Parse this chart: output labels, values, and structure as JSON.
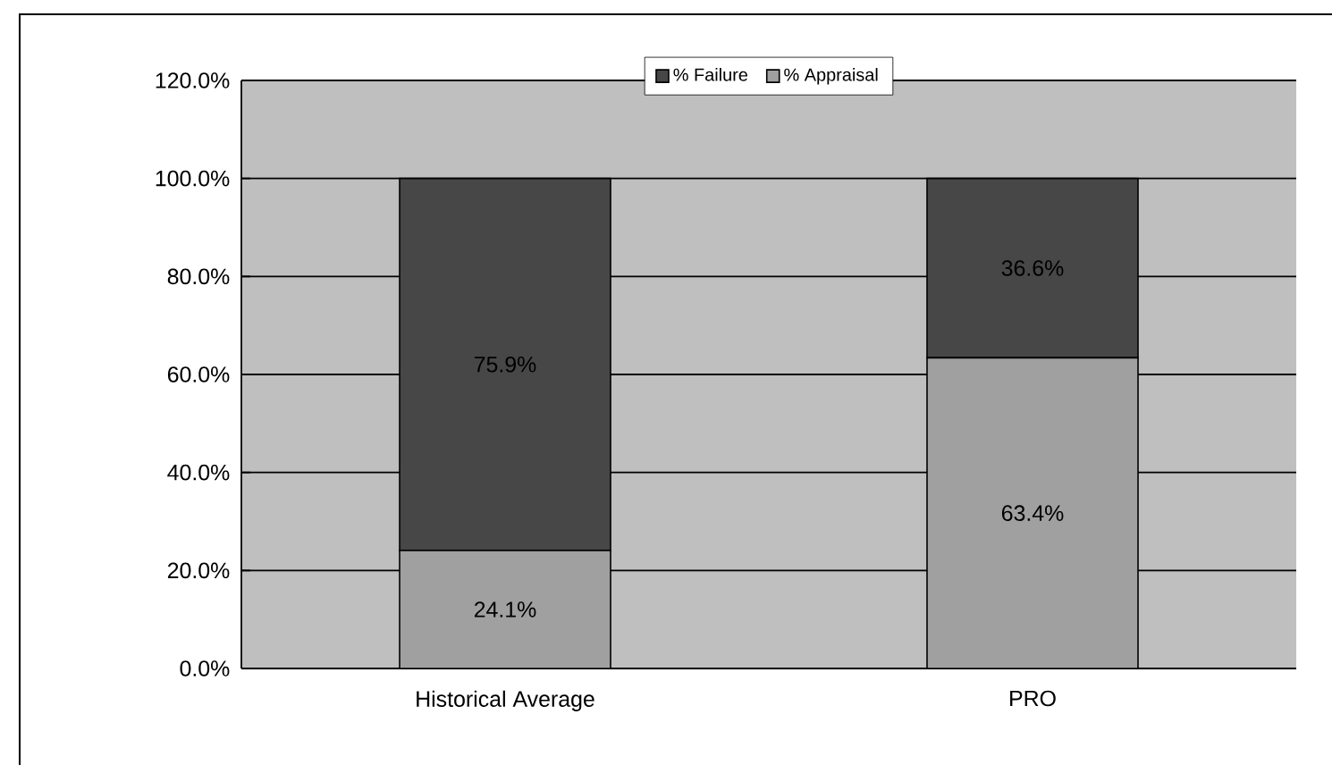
{
  "chart_data": {
    "type": "bar",
    "stacked": true,
    "categories": [
      "Historical Average",
      "PRO"
    ],
    "series": [
      {
        "name": "% Appraisal",
        "color": "#a0a0a0",
        "values": [
          24.1,
          63.4
        ],
        "value_labels": [
          "24.1%",
          "63.4%"
        ]
      },
      {
        "name": "% Failure",
        "color": "#474747",
        "values": [
          75.9,
          36.6
        ],
        "value_labels": [
          "75.9%",
          "36.6%"
        ]
      }
    ],
    "ylim": [
      0,
      120
    ],
    "yticks": [
      {
        "value": 0,
        "label": "0.0%"
      },
      {
        "value": 20,
        "label": "20.0%"
      },
      {
        "value": 40,
        "label": "40.0%"
      },
      {
        "value": 60,
        "label": "60.0%"
      },
      {
        "value": 80,
        "label": "80.0%"
      },
      {
        "value": 100,
        "label": "100.0%"
      },
      {
        "value": 120,
        "label": "120.0%"
      }
    ],
    "grid": "y",
    "legend": "top"
  }
}
